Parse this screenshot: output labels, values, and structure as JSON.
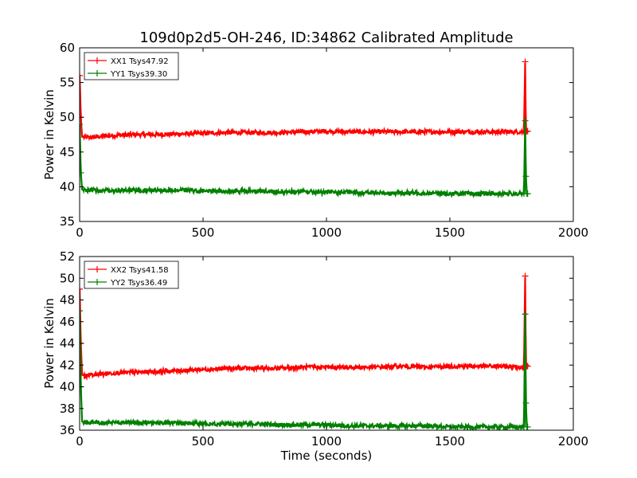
{
  "figure": {
    "title": "109d0p2d5-OH-246, ID:34862 Calibrated Amplitude",
    "xlabel": "Time (seconds)"
  },
  "chart_data": [
    {
      "type": "line",
      "ylabel": "Power in Kelvin",
      "xlim": [
        0,
        2000
      ],
      "ylim": [
        35,
        60
      ],
      "x_ticks": [
        0,
        500,
        1000,
        1500,
        2000
      ],
      "y_ticks": [
        35,
        40,
        45,
        50,
        55,
        60
      ],
      "legend_position": "top-left",
      "grid": false,
      "series": [
        {
          "name": "XX1 Tsys47.92",
          "color": "#ff0000",
          "x": [
            0,
            5,
            10,
            20,
            50,
            100,
            150,
            200,
            300,
            400,
            500,
            600,
            700,
            800,
            900,
            1000,
            1100,
            1200,
            1300,
            1400,
            1500,
            1600,
            1700,
            1800,
            1805,
            1808,
            1812,
            1815
          ],
          "y": [
            56.0,
            50.0,
            47.2,
            47.1,
            47.1,
            47.3,
            47.4,
            47.5,
            47.5,
            47.6,
            47.7,
            47.8,
            47.8,
            47.8,
            47.9,
            48.0,
            47.9,
            47.9,
            47.9,
            47.9,
            47.9,
            47.9,
            47.9,
            47.9,
            58.0,
            47.9,
            48.0,
            48.0
          ]
        },
        {
          "name": "YY1 Tsys39.30",
          "color": "#008000",
          "x": [
            0,
            5,
            10,
            20,
            50,
            100,
            150,
            200,
            300,
            400,
            500,
            600,
            700,
            800,
            900,
            1000,
            1100,
            1200,
            1300,
            1400,
            1500,
            1600,
            1700,
            1800,
            1805,
            1808,
            1812,
            1815
          ],
          "y": [
            49.0,
            42.0,
            39.6,
            39.5,
            39.5,
            39.5,
            39.5,
            39.5,
            39.5,
            39.5,
            39.4,
            39.4,
            39.4,
            39.3,
            39.3,
            39.2,
            39.2,
            39.1,
            39.1,
            39.1,
            39.0,
            39.0,
            39.0,
            39.0,
            49.5,
            41.5,
            39.0,
            39.0
          ]
        }
      ]
    },
    {
      "type": "line",
      "ylabel": "Power in Kelvin",
      "xlabel": "Time (seconds)",
      "xlim": [
        0,
        2000
      ],
      "ylim": [
        36,
        52
      ],
      "x_ticks": [
        0,
        500,
        1000,
        1500,
        2000
      ],
      "y_ticks": [
        36,
        38,
        40,
        42,
        44,
        46,
        48,
        50,
        52
      ],
      "legend_position": "top-left",
      "grid": false,
      "series": [
        {
          "name": "XX2 Tsys41.58",
          "color": "#ff0000",
          "x": [
            0,
            5,
            10,
            20,
            50,
            100,
            150,
            200,
            300,
            400,
            500,
            600,
            700,
            800,
            900,
            1000,
            1100,
            1200,
            1300,
            1400,
            1500,
            1600,
            1700,
            1800,
            1805,
            1808,
            1812,
            1815
          ],
          "y": [
            49.0,
            44.0,
            41.1,
            41.0,
            41.1,
            41.2,
            41.3,
            41.3,
            41.4,
            41.5,
            41.6,
            41.7,
            41.7,
            41.7,
            41.8,
            41.8,
            41.8,
            41.8,
            41.9,
            41.8,
            41.9,
            41.9,
            41.9,
            41.8,
            50.2,
            42.0,
            41.9,
            41.9
          ]
        },
        {
          "name": "YY2 Tsys36.49",
          "color": "#008000",
          "x": [
            0,
            5,
            10,
            20,
            50,
            100,
            150,
            200,
            300,
            400,
            500,
            600,
            700,
            800,
            900,
            1000,
            1100,
            1200,
            1300,
            1400,
            1500,
            1600,
            1700,
            1800,
            1805,
            1808,
            1812,
            1815
          ],
          "y": [
            47.0,
            40.0,
            36.8,
            36.7,
            36.7,
            36.7,
            36.7,
            36.7,
            36.7,
            36.7,
            36.6,
            36.6,
            36.6,
            36.5,
            36.5,
            36.5,
            36.4,
            36.4,
            36.4,
            36.4,
            36.3,
            36.3,
            36.3,
            36.3,
            46.7,
            38.5,
            36.3,
            36.3
          ]
        }
      ]
    }
  ]
}
